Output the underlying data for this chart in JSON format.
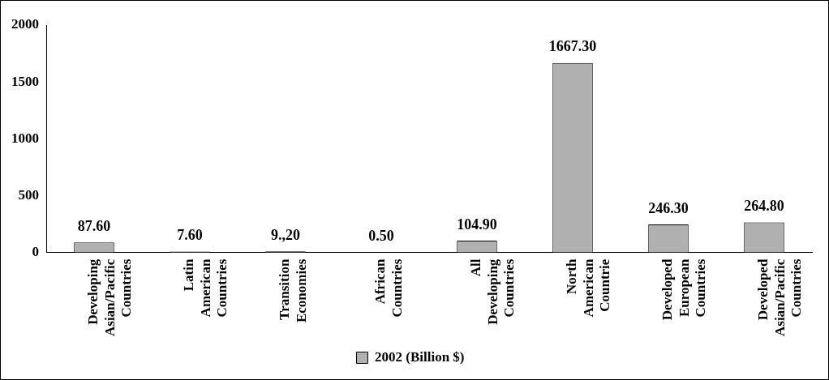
{
  "chart_data": {
    "type": "bar",
    "categories": [
      "Developing Asian/Pacific Countries",
      "Latin American Countries",
      "Transition Economies",
      "African Countries",
      "All Developing Countries",
      "North American Countrie",
      "Developed European Countries",
      "Developed Asian/Pacific Countries"
    ],
    "series": [
      {
        "name": "2002 (Billion $)",
        "color": "#b0b0b0",
        "values": [
          87.6,
          7.6,
          9.2,
          0.5,
          104.9,
          1667.3,
          246.3,
          264.8
        ],
        "value_labels": [
          "87.60",
          "7.60",
          "9.,20",
          "0.50",
          "104.90",
          "1667.30",
          "246.30",
          "264.80"
        ]
      }
    ],
    "ylim": [
      0,
      2000
    ],
    "yticks": [
      0,
      500,
      1000,
      1500,
      2000
    ],
    "grid": false,
    "legend": "bottom"
  }
}
